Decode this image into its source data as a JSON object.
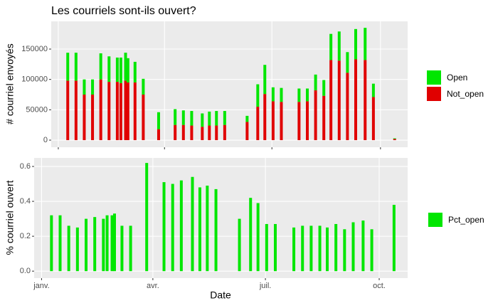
{
  "chart_data": [
    {
      "type": "bar",
      "stacked": true,
      "title": "Les courriels sont-ils ouvert?",
      "y_label": "# courriel envoyés",
      "x": [
        8,
        15,
        22,
        29,
        36,
        43,
        50,
        53,
        57,
        59,
        65,
        72,
        85,
        99,
        106,
        113,
        122,
        128,
        134,
        141,
        160,
        169,
        175,
        182,
        189,
        204,
        211,
        218,
        225,
        231,
        238,
        245,
        252,
        260,
        267,
        285
      ],
      "series": [
        {
          "name": "Open",
          "color": "#00e600",
          "values": [
            46000,
            46000,
            25000,
            25000,
            43000,
            42000,
            40000,
            42000,
            46000,
            40000,
            34000,
            26000,
            28000,
            26000,
            24000,
            24000,
            22000,
            23000,
            24000,
            23000,
            10000,
            37000,
            48000,
            23000,
            23000,
            22000,
            21000,
            26000,
            26000,
            43000,
            48000,
            34000,
            50000,
            53000,
            22000,
            1000
          ]
        },
        {
          "name": "Not_open",
          "color": "#e00000",
          "values": [
            98000,
            98000,
            75000,
            75000,
            100000,
            96000,
            96000,
            94000,
            98000,
            95000,
            95000,
            75000,
            18000,
            25000,
            25000,
            24000,
            22000,
            24000,
            24000,
            25000,
            30000,
            55000,
            76000,
            64000,
            63000,
            63000,
            64000,
            82000,
            73000,
            132000,
            131000,
            111000,
            133000,
            132000,
            71000,
            2000
          ]
        }
      ],
      "xlim": [
        -6,
        296
      ],
      "xticks": [
        {
          "value": 0,
          "label": "janv."
        },
        {
          "value": 90,
          "label": "avr."
        },
        {
          "value": 181,
          "label": "juil."
        },
        {
          "value": 273,
          "label": "oct."
        }
      ],
      "ylim": [
        -11700,
        195700
      ],
      "yticks": [
        0,
        50000,
        100000,
        150000
      ],
      "grid": true,
      "legend": "right"
    },
    {
      "type": "bar",
      "y_label": "% courriel ouvert",
      "x_label": "Date",
      "x": [
        8,
        15,
        22,
        29,
        36,
        43,
        50,
        53,
        57,
        59,
        65,
        72,
        85,
        99,
        106,
        113,
        122,
        128,
        134,
        141,
        160,
        169,
        175,
        182,
        189,
        204,
        211,
        218,
        225,
        231,
        238,
        245,
        252,
        260,
        267,
        285
      ],
      "series": [
        {
          "name": "Pct_open",
          "color": "#00e600",
          "values": [
            0.32,
            0.32,
            0.26,
            0.25,
            0.3,
            0.31,
            0.3,
            0.32,
            0.32,
            0.33,
            0.26,
            0.26,
            0.62,
            0.51,
            0.5,
            0.52,
            0.54,
            0.48,
            0.49,
            0.47,
            0.3,
            0.42,
            0.39,
            0.27,
            0.27,
            0.25,
            0.26,
            0.26,
            0.26,
            0.25,
            0.27,
            0.24,
            0.28,
            0.29,
            0.24,
            0.38
          ]
        }
      ],
      "xlim": [
        -6,
        296
      ],
      "xticks": [
        {
          "value": 0,
          "label": "janv."
        },
        {
          "value": 90,
          "label": "avr."
        },
        {
          "value": 181,
          "label": "juil."
        },
        {
          "value": 273,
          "label": "oct."
        }
      ],
      "ylim": [
        -0.04,
        0.649
      ],
      "yticks": [
        {
          "value": 0,
          "label": "0.0"
        },
        0.2,
        0.4,
        0.6
      ],
      "grid": true,
      "legend": "right"
    }
  ]
}
